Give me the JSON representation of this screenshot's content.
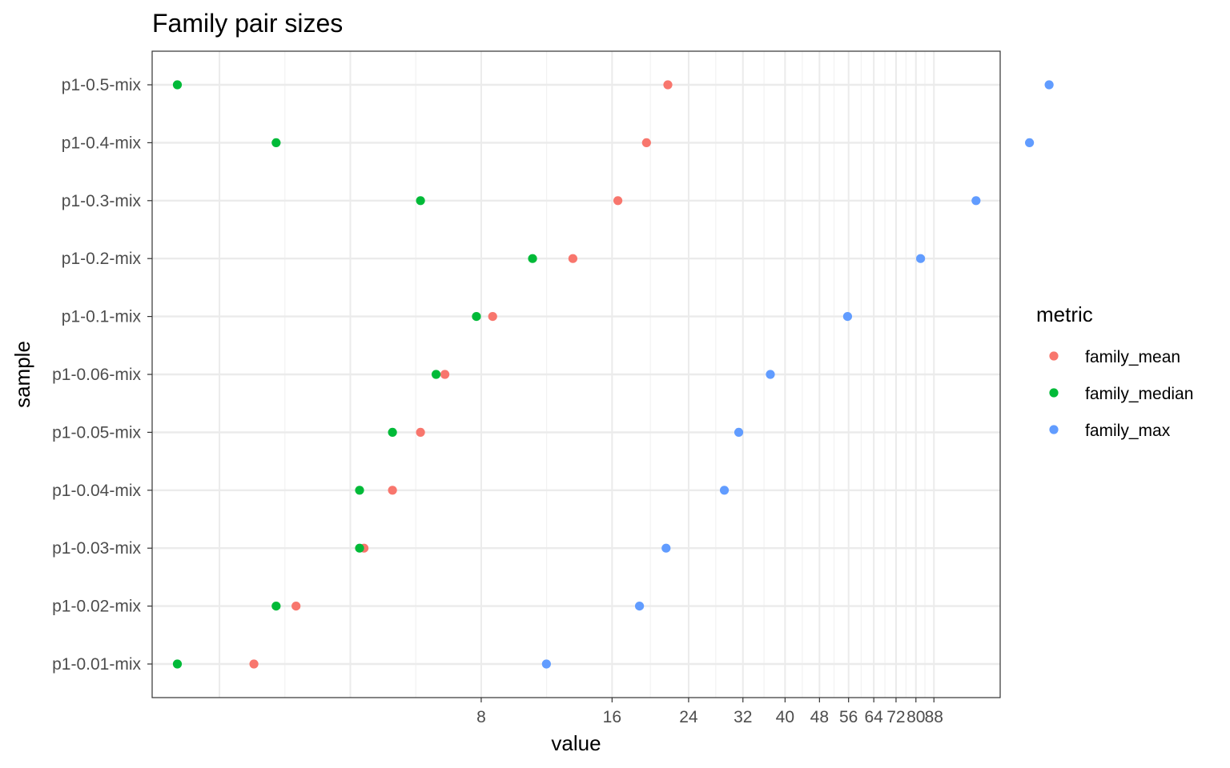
{
  "chart_data": {
    "type": "scatter",
    "title": "Family pair sizes",
    "xlabel": "value",
    "ylabel": "sample",
    "x_scale": "log",
    "xlim": [
      1.4,
      125
    ],
    "x_ticks": [
      "8",
      "16",
      "24",
      "32",
      "40",
      "48",
      "56",
      "64",
      "72",
      "80",
      "88"
    ],
    "grid": true,
    "legend_position": "right",
    "legend_title": "metric",
    "categories": [
      "p1-0.01-mix",
      "p1-0.02-mix",
      "p1-0.03-mix",
      "p1-0.04-mix",
      "p1-0.05-mix",
      "p1-0.06-mix",
      "p1-0.1-mix",
      "p1-0.2-mix",
      "p1-0.3-mix",
      "p1-0.4-mix",
      "p1-0.5-mix"
    ],
    "series": [
      {
        "name": "family_mean",
        "color": "#F8766D",
        "values": [
          2.4,
          3.0,
          4.3,
          5.0,
          5.8,
          6.6,
          8.5,
          13.0,
          16.5,
          19.2,
          21.5
        ]
      },
      {
        "name": "family_median",
        "color": "#00BA38",
        "values": [
          1.6,
          2.7,
          4.2,
          4.2,
          5.0,
          6.3,
          7.8,
          10.5,
          5.8,
          2.7,
          1.6
        ]
      },
      {
        "name": "family_max",
        "color": "#619CFF",
        "values": [
          11.3,
          18.5,
          21.3,
          29.0,
          31.3,
          37.0,
          55.7,
          82.0,
          110.0,
          146.0,
          162.0
        ]
      }
    ]
  }
}
